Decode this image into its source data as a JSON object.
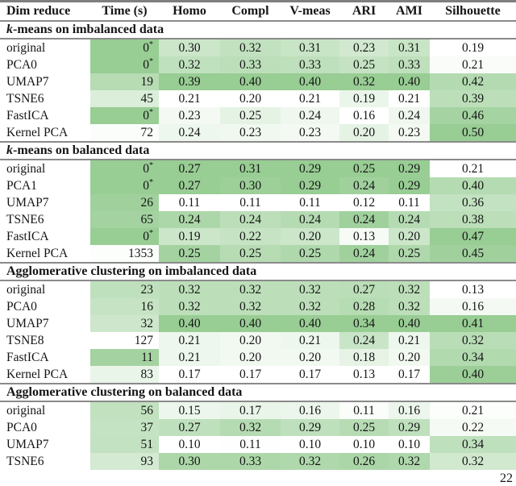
{
  "page": {
    "number": "22"
  },
  "table": {
    "heat_max_color": "#98cd94",
    "columns": [
      "Dim reduce",
      "Time (s)",
      "Homo",
      "Compl",
      "V-meas",
      "ARI",
      "AMI",
      "Silhouette"
    ],
    "sections": [
      {
        "title_italic": "k",
        "title": "-means on imbalanced data",
        "rows": [
          {
            "label": "original",
            "cells": [
              {
                "v": "0",
                "sup": "*",
                "f": 1.0
              },
              {
                "v": "0.30",
                "f": 0.5
              },
              {
                "v": "0.32",
                "f": 0.6
              },
              {
                "v": "0.31",
                "f": 0.53
              },
              {
                "v": "0.23",
                "f": 0.44
              },
              {
                "v": "0.31",
                "f": 0.53
              },
              {
                "v": "0.19",
                "f": 0
              }
            ]
          },
          {
            "label": "PCA0",
            "cells": [
              {
                "v": "0",
                "sup": "*",
                "f": 1.0
              },
              {
                "v": "0.32",
                "f": 0.61
              },
              {
                "v": "0.33",
                "f": 0.65
              },
              {
                "v": "0.33",
                "f": 0.63
              },
              {
                "v": "0.25",
                "f": 0.56
              },
              {
                "v": "0.33",
                "f": 0.63
              },
              {
                "v": "0.21",
                "f": 0.06
              }
            ]
          },
          {
            "label": "UMAP7",
            "cells": [
              {
                "v": "19",
                "f": 0.7
              },
              {
                "v": "0.39",
                "f": 1.0
              },
              {
                "v": "0.40",
                "f": 1.0
              },
              {
                "v": "0.40",
                "f": 1.0
              },
              {
                "v": "0.32",
                "f": 1.0
              },
              {
                "v": "0.40",
                "f": 1.0
              },
              {
                "v": "0.42",
                "f": 0.74
              }
            ]
          },
          {
            "label": "TSNE6",
            "cells": [
              {
                "v": "45",
                "f": 0.35
              },
              {
                "v": "0.21",
                "f": 0
              },
              {
                "v": "0.20",
                "f": 0
              },
              {
                "v": "0.21",
                "f": 0
              },
              {
                "v": "0.19",
                "f": 0.19
              },
              {
                "v": "0.21",
                "f": 0
              },
              {
                "v": "0.39",
                "f": 0.65
              }
            ]
          },
          {
            "label": "FastICA",
            "cells": [
              {
                "v": "0",
                "sup": "*",
                "f": 1.0
              },
              {
                "v": "0.23",
                "f": 0.11
              },
              {
                "v": "0.25",
                "f": 0.25
              },
              {
                "v": "0.24",
                "f": 0.16
              },
              {
                "v": "0.16",
                "f": 0
              },
              {
                "v": "0.24",
                "f": 0.16
              },
              {
                "v": "0.46",
                "f": 0.87
              }
            ]
          },
          {
            "label": "Kernel PCA",
            "cells": [
              {
                "v": "72",
                "f": 0.05
              },
              {
                "v": "0.24",
                "f": 0.17
              },
              {
                "v": "0.23",
                "f": 0.15
              },
              {
                "v": "0.23",
                "f": 0.11
              },
              {
                "v": "0.20",
                "f": 0.25
              },
              {
                "v": "0.23",
                "f": 0.11
              },
              {
                "v": "0.50",
                "f": 1.0
              }
            ]
          }
        ]
      },
      {
        "title_italic": "k",
        "title": "-means on balanced data",
        "rows": [
          {
            "label": "original",
            "cells": [
              {
                "v": "0",
                "sup": "*",
                "f": 1.0
              },
              {
                "v": "0.27",
                "f": 1.0
              },
              {
                "v": "0.31",
                "f": 1.0
              },
              {
                "v": "0.29",
                "f": 1.0
              },
              {
                "v": "0.25",
                "f": 1.0
              },
              {
                "v": "0.29",
                "f": 1.0
              },
              {
                "v": "0.21",
                "f": 0
              }
            ]
          },
          {
            "label": "PCA1",
            "cells": [
              {
                "v": "0",
                "sup": "*",
                "f": 1.0
              },
              {
                "v": "0.27",
                "f": 1.0
              },
              {
                "v": "0.30",
                "f": 0.95
              },
              {
                "v": "0.29",
                "f": 1.0
              },
              {
                "v": "0.24",
                "f": 0.92
              },
              {
                "v": "0.29",
                "f": 1.0
              },
              {
                "v": "0.40",
                "f": 0.73
              }
            ]
          },
          {
            "label": "UMAP7",
            "cells": [
              {
                "v": "26",
                "f": 0.92
              },
              {
                "v": "0.11",
                "f": 0
              },
              {
                "v": "0.11",
                "f": 0
              },
              {
                "v": "0.11",
                "f": 0
              },
              {
                "v": "0.12",
                "f": 0
              },
              {
                "v": "0.11",
                "f": 0
              },
              {
                "v": "0.36",
                "f": 0.58
              }
            ]
          },
          {
            "label": "TSNE6",
            "cells": [
              {
                "v": "65",
                "f": 0.88
              },
              {
                "v": "0.24",
                "f": 0.81
              },
              {
                "v": "0.24",
                "f": 0.65
              },
              {
                "v": "0.24",
                "f": 0.72
              },
              {
                "v": "0.24",
                "f": 0.92
              },
              {
                "v": "0.24",
                "f": 0.72
              },
              {
                "v": "0.38",
                "f": 0.65
              }
            ]
          },
          {
            "label": "FastICA",
            "cells": [
              {
                "v": "0",
                "sup": "*",
                "f": 1.0
              },
              {
                "v": "0.19",
                "f": 0.5
              },
              {
                "v": "0.22",
                "f": 0.55
              },
              {
                "v": "0.20",
                "f": 0.5
              },
              {
                "v": "0.13",
                "f": 0.08
              },
              {
                "v": "0.20",
                "f": 0.5
              },
              {
                "v": "0.47",
                "f": 1.0
              }
            ]
          },
          {
            "label": "Kernel PCA",
            "cells": [
              {
                "v": "1353",
                "f": 0.03
              },
              {
                "v": "0.25",
                "f": 0.88
              },
              {
                "v": "0.25",
                "f": 0.7
              },
              {
                "v": "0.25",
                "f": 0.78
              },
              {
                "v": "0.24",
                "f": 0.92
              },
              {
                "v": "0.25",
                "f": 0.78
              },
              {
                "v": "0.45",
                "f": 0.92
              }
            ]
          }
        ]
      },
      {
        "title_italic": "",
        "title": "Agglomerative clustering on imbalanced data",
        "rows": [
          {
            "label": "original",
            "cells": [
              {
                "v": "23",
                "f": 0.62
              },
              {
                "v": "0.32",
                "f": 0.65
              },
              {
                "v": "0.32",
                "f": 0.65
              },
              {
                "v": "0.32",
                "f": 0.65
              },
              {
                "v": "0.27",
                "f": 0.67
              },
              {
                "v": "0.32",
                "f": 0.65
              },
              {
                "v": "0.13",
                "f": 0
              }
            ]
          },
          {
            "label": "PCA0",
            "cells": [
              {
                "v": "16",
                "f": 0.55
              },
              {
                "v": "0.32",
                "f": 0.65
              },
              {
                "v": "0.32",
                "f": 0.65
              },
              {
                "v": "0.32",
                "f": 0.65
              },
              {
                "v": "0.28",
                "f": 0.71
              },
              {
                "v": "0.32",
                "f": 0.65
              },
              {
                "v": "0.16",
                "f": 0.11
              }
            ]
          },
          {
            "label": "UMAP7",
            "cells": [
              {
                "v": "32",
                "f": 0.48
              },
              {
                "v": "0.40",
                "f": 1.0
              },
              {
                "v": "0.40",
                "f": 1.0
              },
              {
                "v": "0.40",
                "f": 1.0
              },
              {
                "v": "0.34",
                "f": 1.0
              },
              {
                "v": "0.40",
                "f": 1.0
              },
              {
                "v": "0.41",
                "f": 1.0
              }
            ]
          },
          {
            "label": "TSNE8",
            "cells": [
              {
                "v": "127",
                "f": 0
              },
              {
                "v": "0.21",
                "f": 0.17
              },
              {
                "v": "0.20",
                "f": 0.13
              },
              {
                "v": "0.21",
                "f": 0.17
              },
              {
                "v": "0.24",
                "f": 0.52
              },
              {
                "v": "0.21",
                "f": 0.17
              },
              {
                "v": "0.32",
                "f": 0.68
              }
            ]
          },
          {
            "label": "FastICA",
            "cells": [
              {
                "v": "11",
                "f": 0.88
              },
              {
                "v": "0.21",
                "f": 0.17
              },
              {
                "v": "0.20",
                "f": 0.13
              },
              {
                "v": "0.20",
                "f": 0.13
              },
              {
                "v": "0.18",
                "f": 0.24
              },
              {
                "v": "0.20",
                "f": 0.13
              },
              {
                "v": "0.34",
                "f": 0.75
              }
            ]
          },
          {
            "label": "Kernel PCA",
            "cells": [
              {
                "v": "83",
                "f": 0.2
              },
              {
                "v": "0.17",
                "f": 0
              },
              {
                "v": "0.17",
                "f": 0
              },
              {
                "v": "0.17",
                "f": 0
              },
              {
                "v": "0.13",
                "f": 0
              },
              {
                "v": "0.17",
                "f": 0
              },
              {
                "v": "0.40",
                "f": 0.96
              }
            ]
          }
        ]
      },
      {
        "title_italic": "",
        "title": "Agglomerative clustering on balanced data",
        "rows": [
          {
            "label": "original",
            "cells": [
              {
                "v": "56",
                "f": 0.6
              },
              {
                "v": "0.15",
                "f": 0.18
              },
              {
                "v": "0.17",
                "f": 0.2
              },
              {
                "v": "0.16",
                "f": 0.18
              },
              {
                "v": "0.11",
                "f": 0.05
              },
              {
                "v": "0.16",
                "f": 0.18
              },
              {
                "v": "0.21",
                "f": 0.03
              }
            ]
          },
          {
            "label": "PCA0",
            "cells": [
              {
                "v": "37",
                "f": 0.57
              },
              {
                "v": "0.27",
                "f": 0.62
              },
              {
                "v": "0.32",
                "f": 0.72
              },
              {
                "v": "0.29",
                "f": 0.62
              },
              {
                "v": "0.25",
                "f": 0.7
              },
              {
                "v": "0.29",
                "f": 0.62
              },
              {
                "v": "0.22",
                "f": 0.1
              }
            ]
          },
          {
            "label": "UMAP7",
            "cells": [
              {
                "v": "51",
                "f": 0.58
              },
              {
                "v": "0.10",
                "f": 0
              },
              {
                "v": "0.11",
                "f": 0.02
              },
              {
                "v": "0.10",
                "f": 0
              },
              {
                "v": "0.10",
                "f": 0
              },
              {
                "v": "0.10",
                "f": 0
              },
              {
                "v": "0.34",
                "f": 0.62
              }
            ]
          },
          {
            "label": "TSNE6",
            "cells": [
              {
                "v": "93",
                "f": 0.42
              },
              {
                "v": "0.30",
                "f": 0.8
              },
              {
                "v": "0.33",
                "f": 0.8
              },
              {
                "v": "0.32",
                "f": 0.78
              },
              {
                "v": "0.26",
                "f": 0.82
              },
              {
                "v": "0.32",
                "f": 0.78
              },
              {
                "v": "0.32",
                "f": 0.45
              }
            ]
          }
        ]
      }
    ]
  }
}
